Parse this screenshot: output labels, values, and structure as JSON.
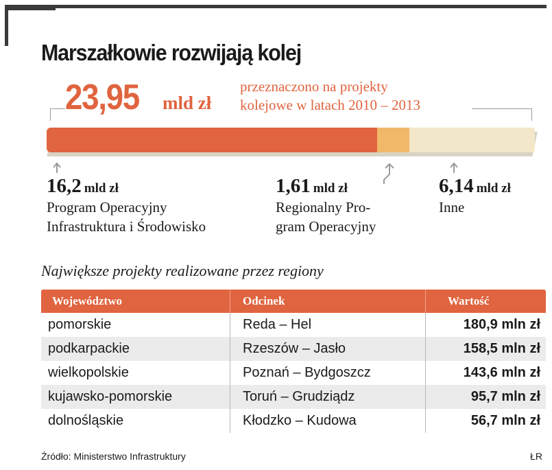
{
  "title": "Marszałkowie rozwijają kolej",
  "total": {
    "value": "23,95",
    "unit": "mld zł",
    "description": "przeznaczono na projekty\nkolejowe w latach 2010 – 2013"
  },
  "chart_data": {
    "type": "bar",
    "orientation": "stacked-horizontal",
    "title": "Marszałkowie rozwijają kolej",
    "total": 23.95,
    "unit": "mld zł",
    "segments": [
      {
        "name": "Program Operacyjny Infrastruktura i Środowisko",
        "label": "Program Operacyjny\nInfrastruktura i Środowisko",
        "value": 16.2,
        "value_text": "16,2",
        "unit": "mld zł",
        "color": "#e0643f"
      },
      {
        "name": "Regionalny Program Operacyjny",
        "label": "Regionalny Pro-\ngram Operacyjny",
        "value": 1.61,
        "value_text": "1,61",
        "unit": "mld zł",
        "color": "#f2b869"
      },
      {
        "name": "Inne",
        "label": "Inne",
        "value": 6.14,
        "value_text": "6,14",
        "unit": "mld zł",
        "color": "#f2e7c8"
      }
    ]
  },
  "table": {
    "subtitle": "Największe projekty realizowane przez regiony",
    "headers": [
      "Województwo",
      "Odcinek",
      "Wartość"
    ],
    "rows": [
      [
        "pomorskie",
        "Reda – Hel",
        "180,9 mln zł"
      ],
      [
        "podkarpackie",
        "Rzeszów – Jasło",
        "158,5 mln zł"
      ],
      [
        "wielkopolskie",
        "Poznań – Bydgoszcz",
        "143,6 mln zł"
      ],
      [
        "kujawsko-pomorskie",
        "Toruń – Grudziądz",
        "95,7 mln zł"
      ],
      [
        "dolnośląskie",
        "Kłodzko – Kudowa",
        "56,7 mln zł"
      ]
    ]
  },
  "footer": {
    "source": "Źródło: Ministerstwo Infrastruktury",
    "author": "ŁR"
  },
  "colors": {
    "accent": "#e0643f",
    "secondary": "#f2b869",
    "tertiary": "#f2e7c8",
    "row_alt": "#ebebeb"
  }
}
